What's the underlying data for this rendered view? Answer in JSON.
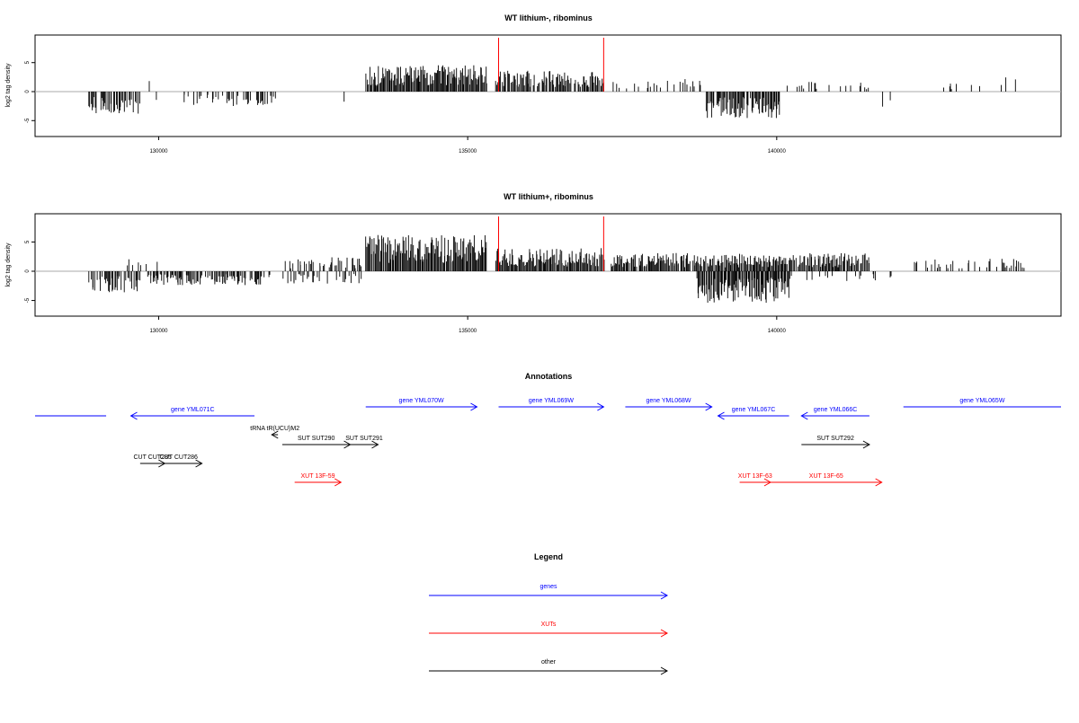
{
  "chart_data": [
    {
      "type": "bar",
      "title": "WT lithium-, ribominus",
      "ylabel": "log2 tag density",
      "xlabel": "",
      "xlim": [
        128000,
        144600
      ],
      "ylim": [
        -7.5,
        10
      ],
      "x_ticks": [
        130000,
        135000,
        140000
      ],
      "y_ticks": [
        -5,
        0,
        5
      ],
      "markers": [
        135500,
        137200
      ],
      "marker_color": "#ff0000",
      "segments": [
        {
          "x0": 128850,
          "x1": 129700,
          "sign": -1,
          "amp": 3.2,
          "density": 2.0
        },
        {
          "x0": 129800,
          "x1": 130000,
          "sign": 1,
          "amp": 2.0,
          "density": 0.35
        },
        {
          "x0": 129800,
          "x1": 130050,
          "sign": -1,
          "amp": 1.5,
          "density": 0.35
        },
        {
          "x0": 130400,
          "x1": 131900,
          "sign": -1,
          "amp": 2.1,
          "density": 0.9
        },
        {
          "x0": 132950,
          "x1": 133000,
          "sign": 1,
          "amp": 1.0,
          "density": 0.2
        },
        {
          "x0": 132950,
          "x1": 133000,
          "sign": -1,
          "amp": 2.0,
          "density": 0.2
        },
        {
          "x0": 133350,
          "x1": 135300,
          "sign": 1,
          "amp": 3.8,
          "density": 3.0
        },
        {
          "x0": 135450,
          "x1": 137200,
          "sign": 1,
          "amp": 3.0,
          "density": 2.6
        },
        {
          "x0": 137250,
          "x1": 138800,
          "sign": 1,
          "amp": 1.8,
          "density": 0.9
        },
        {
          "x0": 138850,
          "x1": 140050,
          "sign": -1,
          "amp": 3.8,
          "density": 2.8
        },
        {
          "x0": 140100,
          "x1": 141500,
          "sign": 1,
          "amp": 1.4,
          "density": 0.5
        },
        {
          "x0": 141650,
          "x1": 141900,
          "sign": -1,
          "amp": 2.6,
          "density": 0.4
        },
        {
          "x0": 142200,
          "x1": 142300,
          "sign": 1,
          "amp": 2.4,
          "density": 0.3
        },
        {
          "x0": 142700,
          "x1": 143300,
          "sign": 1,
          "amp": 1.2,
          "density": 0.25
        },
        {
          "x0": 143500,
          "x1": 143950,
          "sign": 1,
          "amp": 3.0,
          "density": 0.4
        }
      ]
    },
    {
      "type": "bar",
      "title": "WT lithium+, ribominus",
      "ylabel": "log2 tag density",
      "xlabel": "",
      "xlim": [
        128000,
        144600
      ],
      "ylim": [
        -7.5,
        10
      ],
      "x_ticks": [
        130000,
        135000,
        140000
      ],
      "y_ticks": [
        -5,
        0,
        5
      ],
      "markers": [
        135500,
        137200
      ],
      "marker_color": "#ff0000",
      "segments": [
        {
          "x0": 128850,
          "x1": 129700,
          "sign": -1,
          "amp": 3.0,
          "density": 2.0
        },
        {
          "x0": 129450,
          "x1": 130000,
          "sign": 1,
          "amp": 1.8,
          "density": 0.6
        },
        {
          "x0": 129800,
          "x1": 131800,
          "sign": -1,
          "amp": 2.0,
          "density": 1.8
        },
        {
          "x0": 132000,
          "x1": 133300,
          "sign": 1,
          "amp": 2.0,
          "density": 1.4
        },
        {
          "x0": 132000,
          "x1": 133300,
          "sign": -1,
          "amp": 1.8,
          "density": 0.7
        },
        {
          "x0": 133350,
          "x1": 135300,
          "sign": 1,
          "amp": 5.2,
          "density": 4.5
        },
        {
          "x0": 135450,
          "x1": 137200,
          "sign": 1,
          "amp": 3.3,
          "density": 3.6
        },
        {
          "x0": 137300,
          "x1": 141500,
          "sign": 1,
          "amp": 2.6,
          "density": 2.8
        },
        {
          "x0": 138700,
          "x1": 140200,
          "sign": -1,
          "amp": 4.5,
          "density": 3.5
        },
        {
          "x0": 140200,
          "x1": 141600,
          "sign": -1,
          "amp": 1.4,
          "density": 0.6
        },
        {
          "x0": 141650,
          "x1": 141950,
          "sign": -1,
          "amp": 2.2,
          "density": 0.5
        },
        {
          "x0": 142200,
          "x1": 144000,
          "sign": 1,
          "amp": 1.8,
          "density": 0.7
        }
      ]
    }
  ],
  "annotations": {
    "title": "Annotations",
    "colors": {
      "gene": "#0000ff",
      "xut": "#ff0000",
      "other": "#000000"
    },
    "items": [
      {
        "label": "",
        "kind": "gene",
        "start": 128000,
        "end": 129150,
        "strand": "none",
        "row": 1
      },
      {
        "label": "gene YML071C",
        "kind": "gene",
        "start": 129550,
        "end": 131550,
        "strand": "-",
        "row": 1
      },
      {
        "label": "gene YML070W",
        "kind": "gene",
        "start": 133350,
        "end": 135150,
        "strand": "+",
        "row": 0
      },
      {
        "label": "gene YML069W",
        "kind": "gene",
        "start": 135500,
        "end": 137200,
        "strand": "+",
        "row": 0
      },
      {
        "label": "gene YML068W",
        "kind": "gene",
        "start": 137550,
        "end": 138950,
        "strand": "+",
        "row": 0
      },
      {
        "label": "gene YML067C",
        "kind": "gene",
        "start": 139050,
        "end": 140200,
        "strand": "-",
        "row": 1
      },
      {
        "label": "gene YML066C",
        "kind": "gene",
        "start": 140400,
        "end": 141500,
        "strand": "-",
        "row": 1
      },
      {
        "label": "gene YML065W",
        "kind": "gene",
        "start": 142050,
        "end": 144600,
        "strand": "none",
        "row": 0
      },
      {
        "label": "tRNA tR(UCU)M2",
        "kind": "other",
        "start": 131830,
        "end": 131930,
        "strand": "-",
        "row": 2
      },
      {
        "label": "SUT SUT290",
        "kind": "other",
        "start": 132000,
        "end": 133100,
        "strand": "+",
        "row": 3
      },
      {
        "label": "SUT SUT291",
        "kind": "other",
        "start": 133100,
        "end": 133550,
        "strand": "+",
        "row": 3
      },
      {
        "label": "SUT SUT292",
        "kind": "other",
        "start": 140400,
        "end": 141500,
        "strand": "+",
        "row": 3
      },
      {
        "label": "CUT CUT285",
        "kind": "other",
        "start": 129700,
        "end": 130100,
        "strand": "+",
        "row": 4
      },
      {
        "label": "CUT CUT286",
        "kind": "other",
        "start": 129950,
        "end": 130700,
        "strand": "+",
        "row": 4
      },
      {
        "label": "XUT 13F-59",
        "kind": "xut",
        "start": 132200,
        "end": 132950,
        "strand": "+",
        "row": 5
      },
      {
        "label": "XUT 13F-63",
        "kind": "xut",
        "start": 139400,
        "end": 139900,
        "strand": "+",
        "row": 5
      },
      {
        "label": "XUT 13F-65",
        "kind": "xut",
        "start": 139900,
        "end": 141700,
        "strand": "+",
        "row": 5
      }
    ]
  },
  "legend": {
    "title": "Legend",
    "items": [
      {
        "label": "genes",
        "color": "#0000ff"
      },
      {
        "label": "XUTs",
        "color": "#ff0000"
      },
      {
        "label": "other",
        "color": "#000000"
      }
    ]
  }
}
